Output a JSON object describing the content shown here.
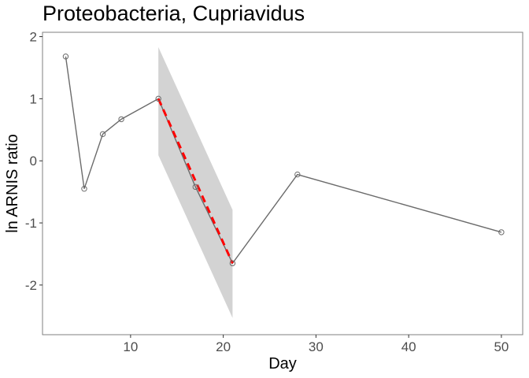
{
  "chart_data": {
    "type": "line",
    "title": "Proteobacteria, Cupriavidus",
    "xlabel": "Day",
    "ylabel": "ln ARNIS ratio",
    "xlim": [
      0.5,
      52.3
    ],
    "ylim": [
      -2.8,
      2.07
    ],
    "x_ticks": [
      10,
      20,
      30,
      40,
      50
    ],
    "y_ticks": [
      2,
      1,
      0,
      -1,
      -2
    ],
    "x_tick_labels": [
      "10",
      "20",
      "30",
      "40",
      "50"
    ],
    "y_tick_labels": [
      "2",
      "1",
      "0",
      "-1",
      "-2"
    ],
    "grid": false,
    "series": [
      {
        "x": [
          3,
          5,
          7,
          9,
          13,
          17,
          21,
          28,
          50
        ],
        "y": [
          1.68,
          -0.45,
          0.43,
          0.67,
          1.0,
          -0.42,
          -1.65,
          -0.22,
          -1.15
        ]
      }
    ],
    "fit": {
      "x": [
        13,
        21
      ],
      "y": [
        1.0,
        -1.65
      ],
      "ci_upper": [
        1.83,
        -0.79
      ],
      "ci_lower": [
        0.09,
        -2.53
      ]
    },
    "colors": {
      "line": "#6b6b6b",
      "marker": "#6b6b6b",
      "fit": "#ff0000",
      "ribbon": "#d3d3d3",
      "panel_border": "#7f7f7f"
    }
  }
}
